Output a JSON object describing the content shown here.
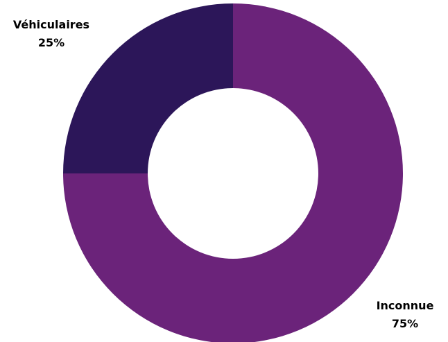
{
  "chart_data": {
    "type": "pie",
    "donut": true,
    "title": "",
    "slices": [
      {
        "label": "Inconnue",
        "percent_label": "75%",
        "value": 75,
        "color": "#6b237a"
      },
      {
        "label": "Véhiculaires",
        "percent_label": "25%",
        "value": 25,
        "color": "#2c1659"
      }
    ],
    "start_angle": "12 o'clock",
    "direction": "clockwise",
    "legend": "none"
  }
}
